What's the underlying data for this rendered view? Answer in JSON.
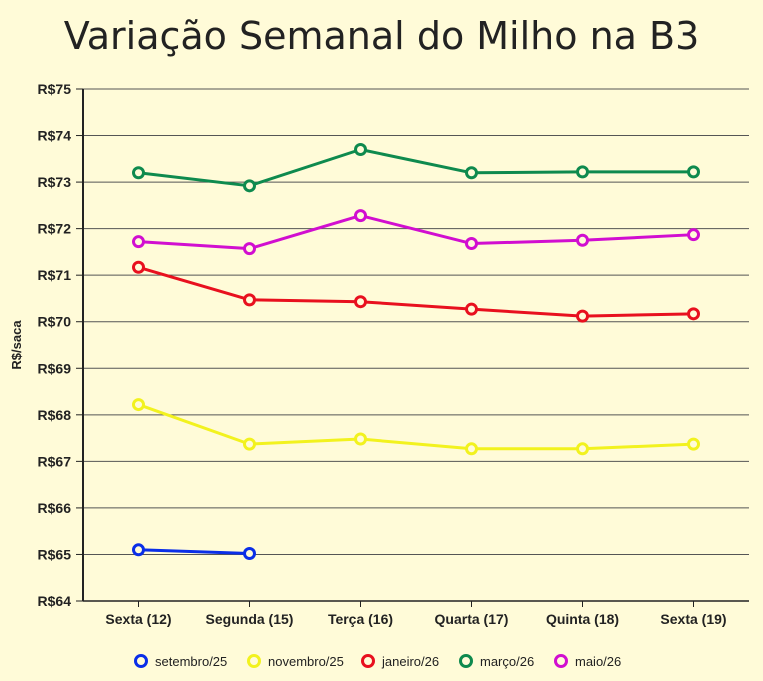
{
  "chart_data": {
    "type": "line",
    "title": "Variação Semanal do Milho na B3",
    "xlabel": "",
    "ylabel": "R$/saca",
    "categories": [
      "Sexta (12)",
      "Segunda (15)",
      "Terça (16)",
      "Quarta (17)",
      "Quinta (18)",
      "Sexta (19)"
    ],
    "y_ticks": [
      "R$64",
      "R$65",
      "R$66",
      "R$67",
      "R$68",
      "R$69",
      "R$70",
      "R$71",
      "R$72",
      "R$73",
      "R$74",
      "R$75"
    ],
    "ylim": [
      64,
      75
    ],
    "grid": "horizontal",
    "legend_position": "bottom",
    "series": [
      {
        "name": "setembro/25",
        "color": "#0a2ee8",
        "values": [
          65.1,
          65.02,
          null,
          null,
          null,
          null
        ]
      },
      {
        "name": "novembro/25",
        "color": "#f2f21e",
        "values": [
          68.22,
          67.37,
          67.48,
          67.27,
          67.27,
          67.37
        ]
      },
      {
        "name": "janeiro/26",
        "color": "#e8101e",
        "values": [
          71.17,
          70.47,
          70.43,
          70.27,
          70.12,
          70.17
        ]
      },
      {
        "name": "março/26",
        "color": "#0e8a4e",
        "values": [
          73.2,
          72.92,
          73.7,
          73.2,
          73.22,
          73.22
        ]
      },
      {
        "name": "maio/26",
        "color": "#d10ed0",
        "values": [
          71.72,
          71.57,
          72.28,
          71.68,
          71.75,
          71.87
        ]
      }
    ]
  }
}
